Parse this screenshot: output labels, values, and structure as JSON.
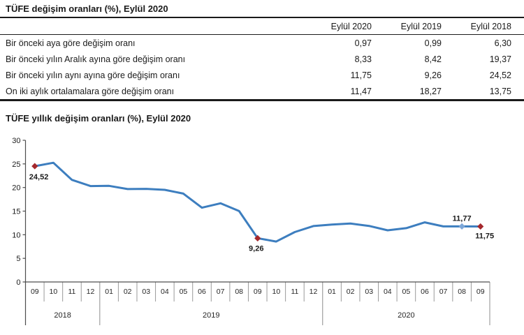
{
  "table": {
    "title": "TÜFE değişim oranları (%), Eylül 2020",
    "columns": [
      "Eylül 2020",
      "Eylül 2019",
      "Eylül 2018"
    ],
    "rows": [
      {
        "label": "Bir önceki aya göre değişim oranı",
        "values": [
          "0,97",
          "0,99",
          "6,30"
        ]
      },
      {
        "label": "Bir önceki yılın Aralık ayına göre değişim oranı",
        "values": [
          "8,33",
          "8,42",
          "19,37"
        ]
      },
      {
        "label": "Bir önceki yılın aynı ayına göre değişim oranı",
        "values": [
          "11,75",
          "9,26",
          "24,52"
        ]
      },
      {
        "label": "On iki aylık ortalamalara göre değişim oranı",
        "values": [
          "11,47",
          "18,27",
          "13,75"
        ]
      }
    ]
  },
  "chart_data": {
    "type": "line",
    "title": "TÜFE yıllık değişim oranları (%), Eylül 2020",
    "ylabel": "",
    "xlabel": "",
    "ylim": [
      0,
      30
    ],
    "yticks": [
      0,
      5,
      10,
      15,
      20,
      25,
      30
    ],
    "grid": false,
    "legend": "none",
    "month_labels": [
      "09",
      "10",
      "11",
      "12",
      "01",
      "02",
      "03",
      "04",
      "05",
      "06",
      "07",
      "08",
      "09",
      "10",
      "11",
      "12",
      "01",
      "02",
      "03",
      "04",
      "05",
      "06",
      "07",
      "08",
      "09"
    ],
    "year_groups": [
      {
        "label": "2018",
        "months": 4
      },
      {
        "label": "2019",
        "months": 12
      },
      {
        "label": "2020",
        "months": 9
      }
    ],
    "series": [
      {
        "name": "TÜFE yıllık değişim oranı (%)",
        "values": [
          24.52,
          25.24,
          21.62,
          20.3,
          20.35,
          19.67,
          19.71,
          19.5,
          18.71,
          15.72,
          16.65,
          15.01,
          9.26,
          8.55,
          10.56,
          11.84,
          12.15,
          12.37,
          11.86,
          10.94,
          11.39,
          12.62,
          11.76,
          11.77,
          11.75
        ]
      }
    ],
    "annotations": [
      {
        "index": 0,
        "text": "24,52",
        "marker_color": "#a5282d",
        "position": "below-left"
      },
      {
        "index": 12,
        "text": "9,26",
        "marker_color": "#a5282d",
        "position": "below"
      },
      {
        "index": 23,
        "text": "11,77",
        "marker_color": "#7da7d8",
        "position": "above"
      },
      {
        "index": 24,
        "text": "11,75",
        "marker_color": "#a5282d",
        "position": "below-right"
      }
    ]
  },
  "colors": {
    "line": "#3d7ebf",
    "marker_red": "#a5282d",
    "marker_blue": "#7da7d8",
    "axis": "#4d4d4d",
    "separator": "#8c8c8c",
    "text": "#1a1a1a"
  }
}
